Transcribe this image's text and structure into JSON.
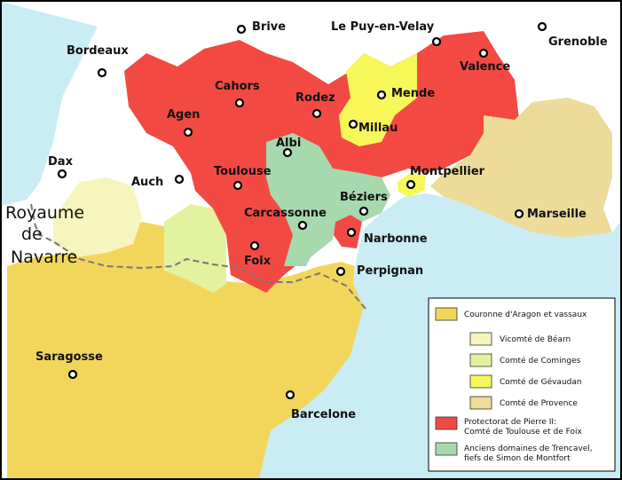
{
  "colors": {
    "sea": "#c9ecf5",
    "land": "#ffffff",
    "aragon": "#f2d65c",
    "bearn": "#f7f5be",
    "comminges": "#e3f29d",
    "gevaudan": "#f8f75a",
    "provence": "#ecdb99",
    "protectorat": "#f24a43",
    "trencavel": "#a6d9ae"
  },
  "cities": {
    "brive": "Brive",
    "lepuy": "Le Puy-en-Velay",
    "grenoble": "Grenoble",
    "bordeaux": "Bordeaux",
    "valence": "Valence",
    "cahors": "Cahors",
    "rodez": "Rodez",
    "mende": "Mende",
    "agen": "Agen",
    "millau": "Millau",
    "albi": "Albi",
    "dax": "Dax",
    "montpellier": "Montpellier",
    "auch": "Auch",
    "toulouse": "Toulouse",
    "beziers": "Béziers",
    "marseille": "Marseille",
    "carcassonne": "Carcassonne",
    "narbonne": "Narbonne",
    "foix": "Foix",
    "perpignan": "Perpignan",
    "saragosse": "Saragosse",
    "barcelone": "Barcelone"
  },
  "regions": {
    "navarre_line1": "Royaume",
    "navarre_line2": "de",
    "navarre_line3": "Navarre"
  },
  "legend": {
    "aragon": "Couronne d'Aragon et vassaux",
    "bearn": "Vicomté de Béarn",
    "comminges": "Comté de Cominges",
    "gevaudan": "Comté de Gévaudan",
    "provence": "Comté de Provence",
    "protectorat_line1": "Protectorat de Pierre II:",
    "protectorat_line2": "Comté de Toulouse et de Foix",
    "trencavel_line1": "Anciens domaines de Trencavel,",
    "trencavel_line2": "fiefs de Simon de Montfort"
  }
}
